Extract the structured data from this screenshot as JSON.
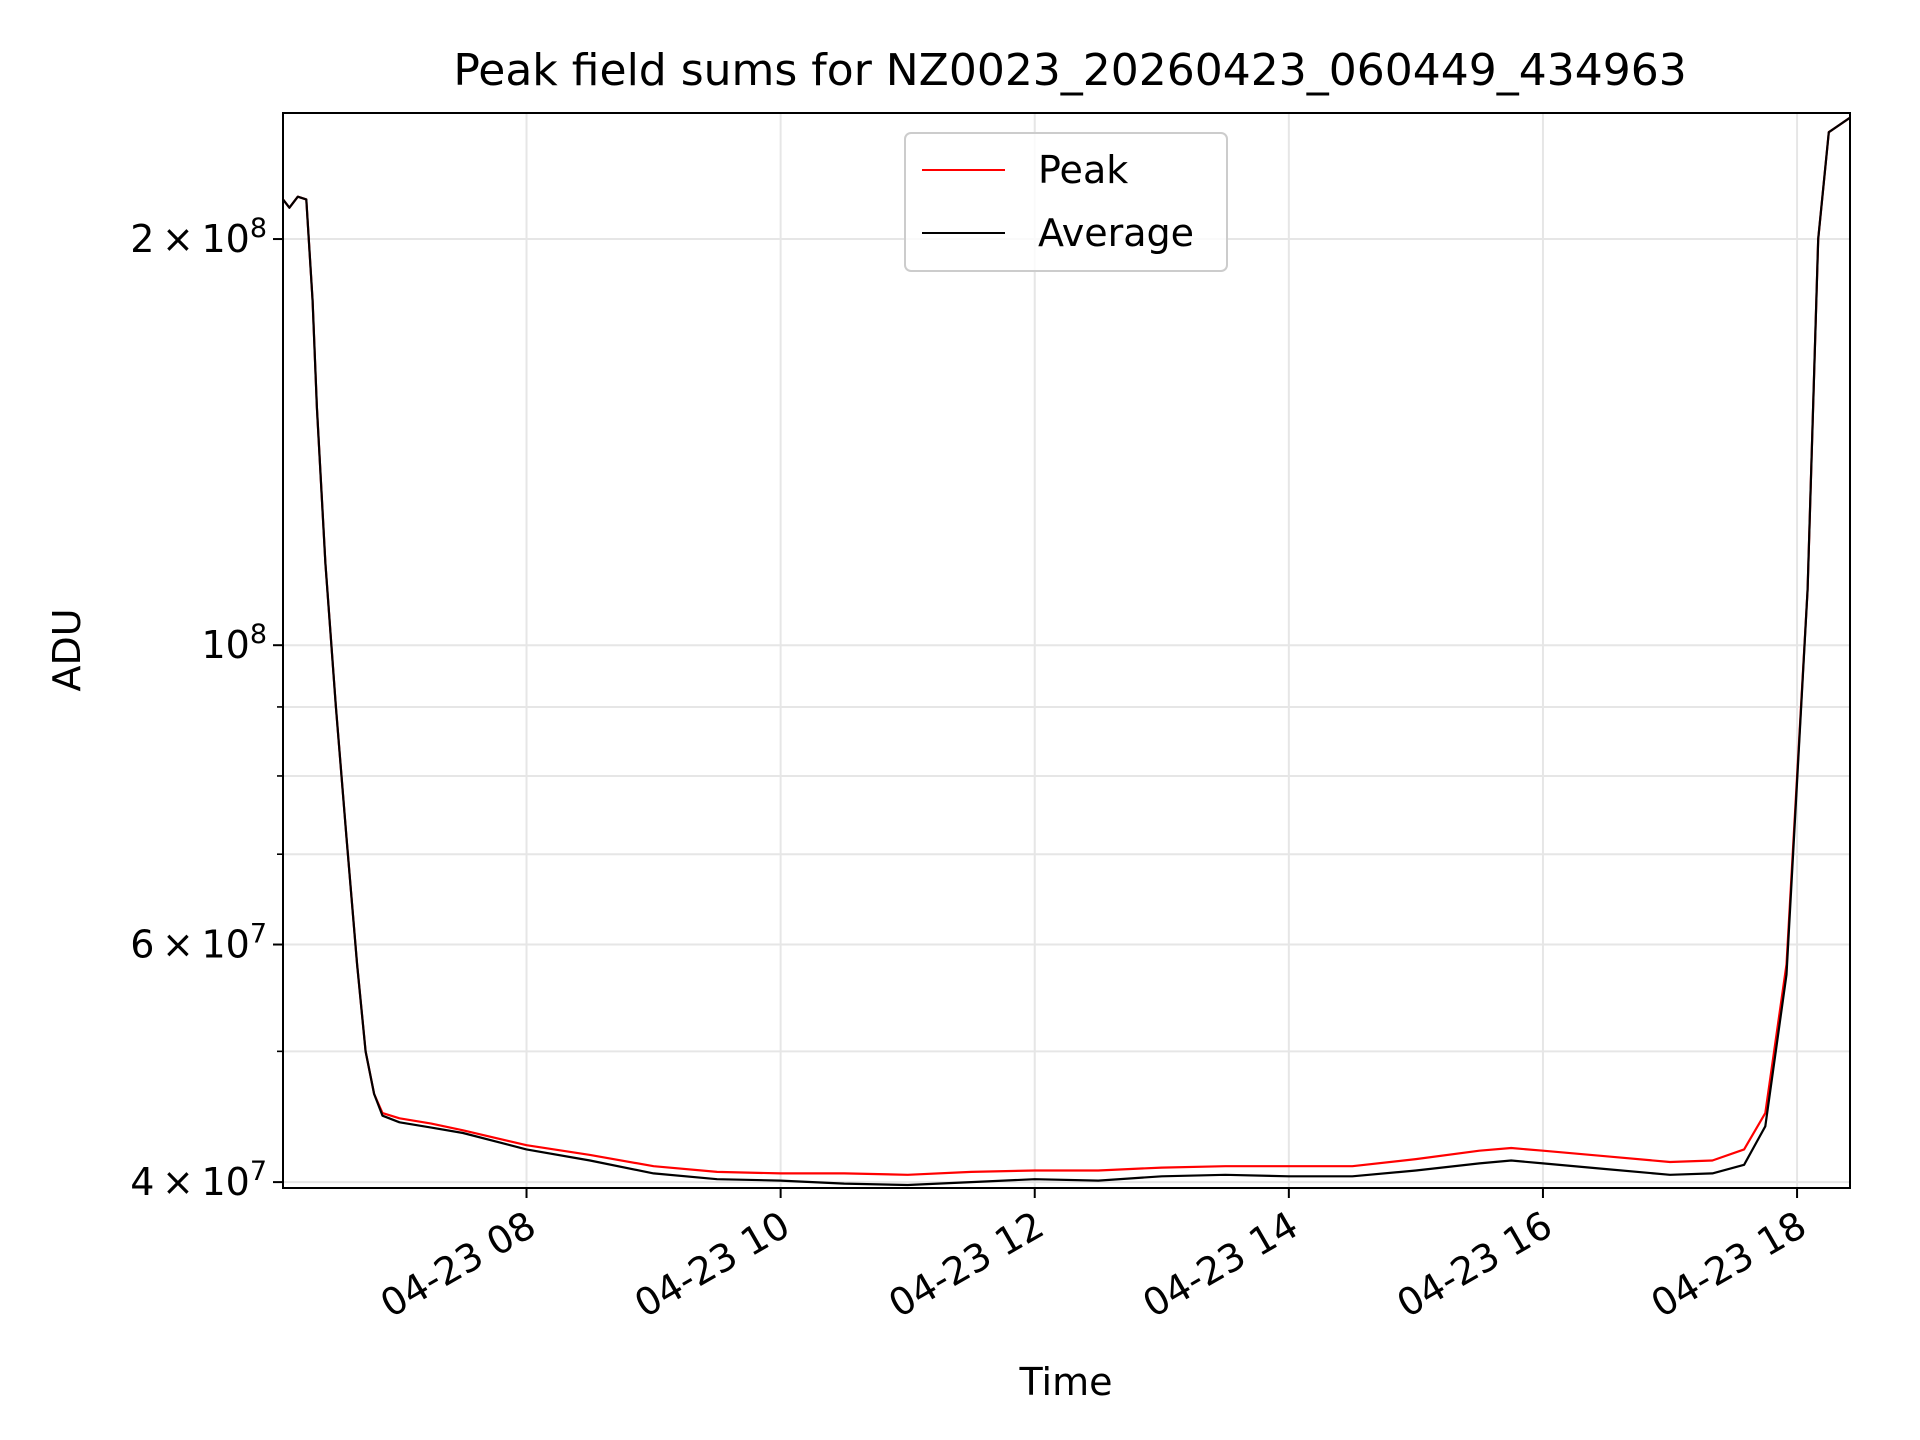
{
  "chart_data": {
    "type": "line",
    "title": "Peak field sums for NZ0023_20260423_060449_434963",
    "xlabel": "Time",
    "ylabel": "ADU",
    "x_scale": "time",
    "y_scale": "log",
    "xlim": [
      "2026-04-23 06:05",
      "2026-04-23 18:25"
    ],
    "ylim": [
      39600000,
      248000000
    ],
    "x_ticks": [
      {
        "value": "2026-04-23 08:00",
        "label": "04-23 08"
      },
      {
        "value": "2026-04-23 10:00",
        "label": "04-23 10"
      },
      {
        "value": "2026-04-23 12:00",
        "label": "04-23 12"
      },
      {
        "value": "2026-04-23 14:00",
        "label": "04-23 14"
      },
      {
        "value": "2026-04-23 16:00",
        "label": "04-23 16"
      },
      {
        "value": "2026-04-23 18:00",
        "label": "04-23 18"
      }
    ],
    "y_major_ticks": [
      {
        "value": 40000000,
        "mantissa": "4",
        "exponent": "7"
      },
      {
        "value": 60000000,
        "mantissa": "6",
        "exponent": "7"
      },
      {
        "value": 100000000,
        "mantissa": "10",
        "exponent": "8"
      },
      {
        "value": 200000000,
        "mantissa": "2",
        "exponent": "8"
      }
    ],
    "y_minor_ticks": [
      50000000,
      70000000,
      80000000,
      90000000
    ],
    "grid": true,
    "legend": {
      "position": "top-center"
    },
    "series": [
      {
        "name": "Peak",
        "color": "#ff0000",
        "x": [
          "2026-04-23 06:05",
          "2026-04-23 06:08",
          "2026-04-23 06:12",
          "2026-04-23 06:16",
          "2026-04-23 06:19",
          "2026-04-23 06:21",
          "2026-04-23 06:25",
          "2026-04-23 06:30",
          "2026-04-23 06:35",
          "2026-04-23 06:40",
          "2026-04-23 06:44",
          "2026-04-23 06:48",
          "2026-04-23 06:52",
          "2026-04-23 07:00",
          "2026-04-23 07:15",
          "2026-04-23 07:30",
          "2026-04-23 08:00",
          "2026-04-23 08:30",
          "2026-04-23 09:00",
          "2026-04-23 09:30",
          "2026-04-23 10:00",
          "2026-04-23 10:30",
          "2026-04-23 11:00",
          "2026-04-23 11:30",
          "2026-04-23 12:00",
          "2026-04-23 12:30",
          "2026-04-23 13:00",
          "2026-04-23 13:30",
          "2026-04-23 14:00",
          "2026-04-23 14:30",
          "2026-04-23 15:00",
          "2026-04-23 15:30",
          "2026-04-23 15:45",
          "2026-04-23 16:00",
          "2026-04-23 16:30",
          "2026-04-23 17:00",
          "2026-04-23 17:20",
          "2026-04-23 17:35",
          "2026-04-23 17:45",
          "2026-04-23 17:55",
          "2026-04-23 18:05",
          "2026-04-23 18:10",
          "2026-04-23 18:15",
          "2026-04-23 18:25"
        ],
        "values": [
          214000000,
          211000000,
          215000000,
          214000000,
          180000000,
          150000000,
          115000000,
          90000000,
          72000000,
          58000000,
          50000000,
          46500000,
          45000000,
          44600000,
          44200000,
          43700000,
          42600000,
          41900000,
          41100000,
          40700000,
          40600000,
          40600000,
          40500000,
          40700000,
          40800000,
          40800000,
          41000000,
          41100000,
          41100000,
          41100000,
          41600000,
          42200000,
          42400000,
          42200000,
          41800000,
          41400000,
          41500000,
          42300000,
          45000000,
          58000000,
          110000000,
          200000000,
          240000000,
          246000000
        ]
      },
      {
        "name": "Average",
        "color": "#000000",
        "x": [
          "2026-04-23 06:05",
          "2026-04-23 06:08",
          "2026-04-23 06:12",
          "2026-04-23 06:16",
          "2026-04-23 06:19",
          "2026-04-23 06:21",
          "2026-04-23 06:25",
          "2026-04-23 06:30",
          "2026-04-23 06:35",
          "2026-04-23 06:40",
          "2026-04-23 06:44",
          "2026-04-23 06:48",
          "2026-04-23 06:52",
          "2026-04-23 07:00",
          "2026-04-23 07:15",
          "2026-04-23 07:30",
          "2026-04-23 08:00",
          "2026-04-23 08:30",
          "2026-04-23 09:00",
          "2026-04-23 09:30",
          "2026-04-23 10:00",
          "2026-04-23 10:30",
          "2026-04-23 11:00",
          "2026-04-23 11:30",
          "2026-04-23 12:00",
          "2026-04-23 12:30",
          "2026-04-23 13:00",
          "2026-04-23 13:30",
          "2026-04-23 14:00",
          "2026-04-23 14:30",
          "2026-04-23 15:00",
          "2026-04-23 15:30",
          "2026-04-23 15:45",
          "2026-04-23 16:00",
          "2026-04-23 16:30",
          "2026-04-23 17:00",
          "2026-04-23 17:20",
          "2026-04-23 17:35",
          "2026-04-23 17:45",
          "2026-04-23 17:55",
          "2026-04-23 18:05",
          "2026-04-23 18:10",
          "2026-04-23 18:15",
          "2026-04-23 18:25"
        ],
        "values": [
          214000000,
          211000000,
          215000000,
          214000000,
          180000000,
          150000000,
          115000000,
          90000000,
          72000000,
          58000000,
          50000000,
          46500000,
          44800000,
          44300000,
          43900000,
          43500000,
          42300000,
          41500000,
          40600000,
          40200000,
          40100000,
          39900000,
          39800000,
          40000000,
          40200000,
          40100000,
          40400000,
          40500000,
          40400000,
          40400000,
          40800000,
          41300000,
          41500000,
          41300000,
          40900000,
          40500000,
          40600000,
          41200000,
          44000000,
          57000000,
          110000000,
          200000000,
          240000000,
          246000000
        ]
      }
    ]
  }
}
